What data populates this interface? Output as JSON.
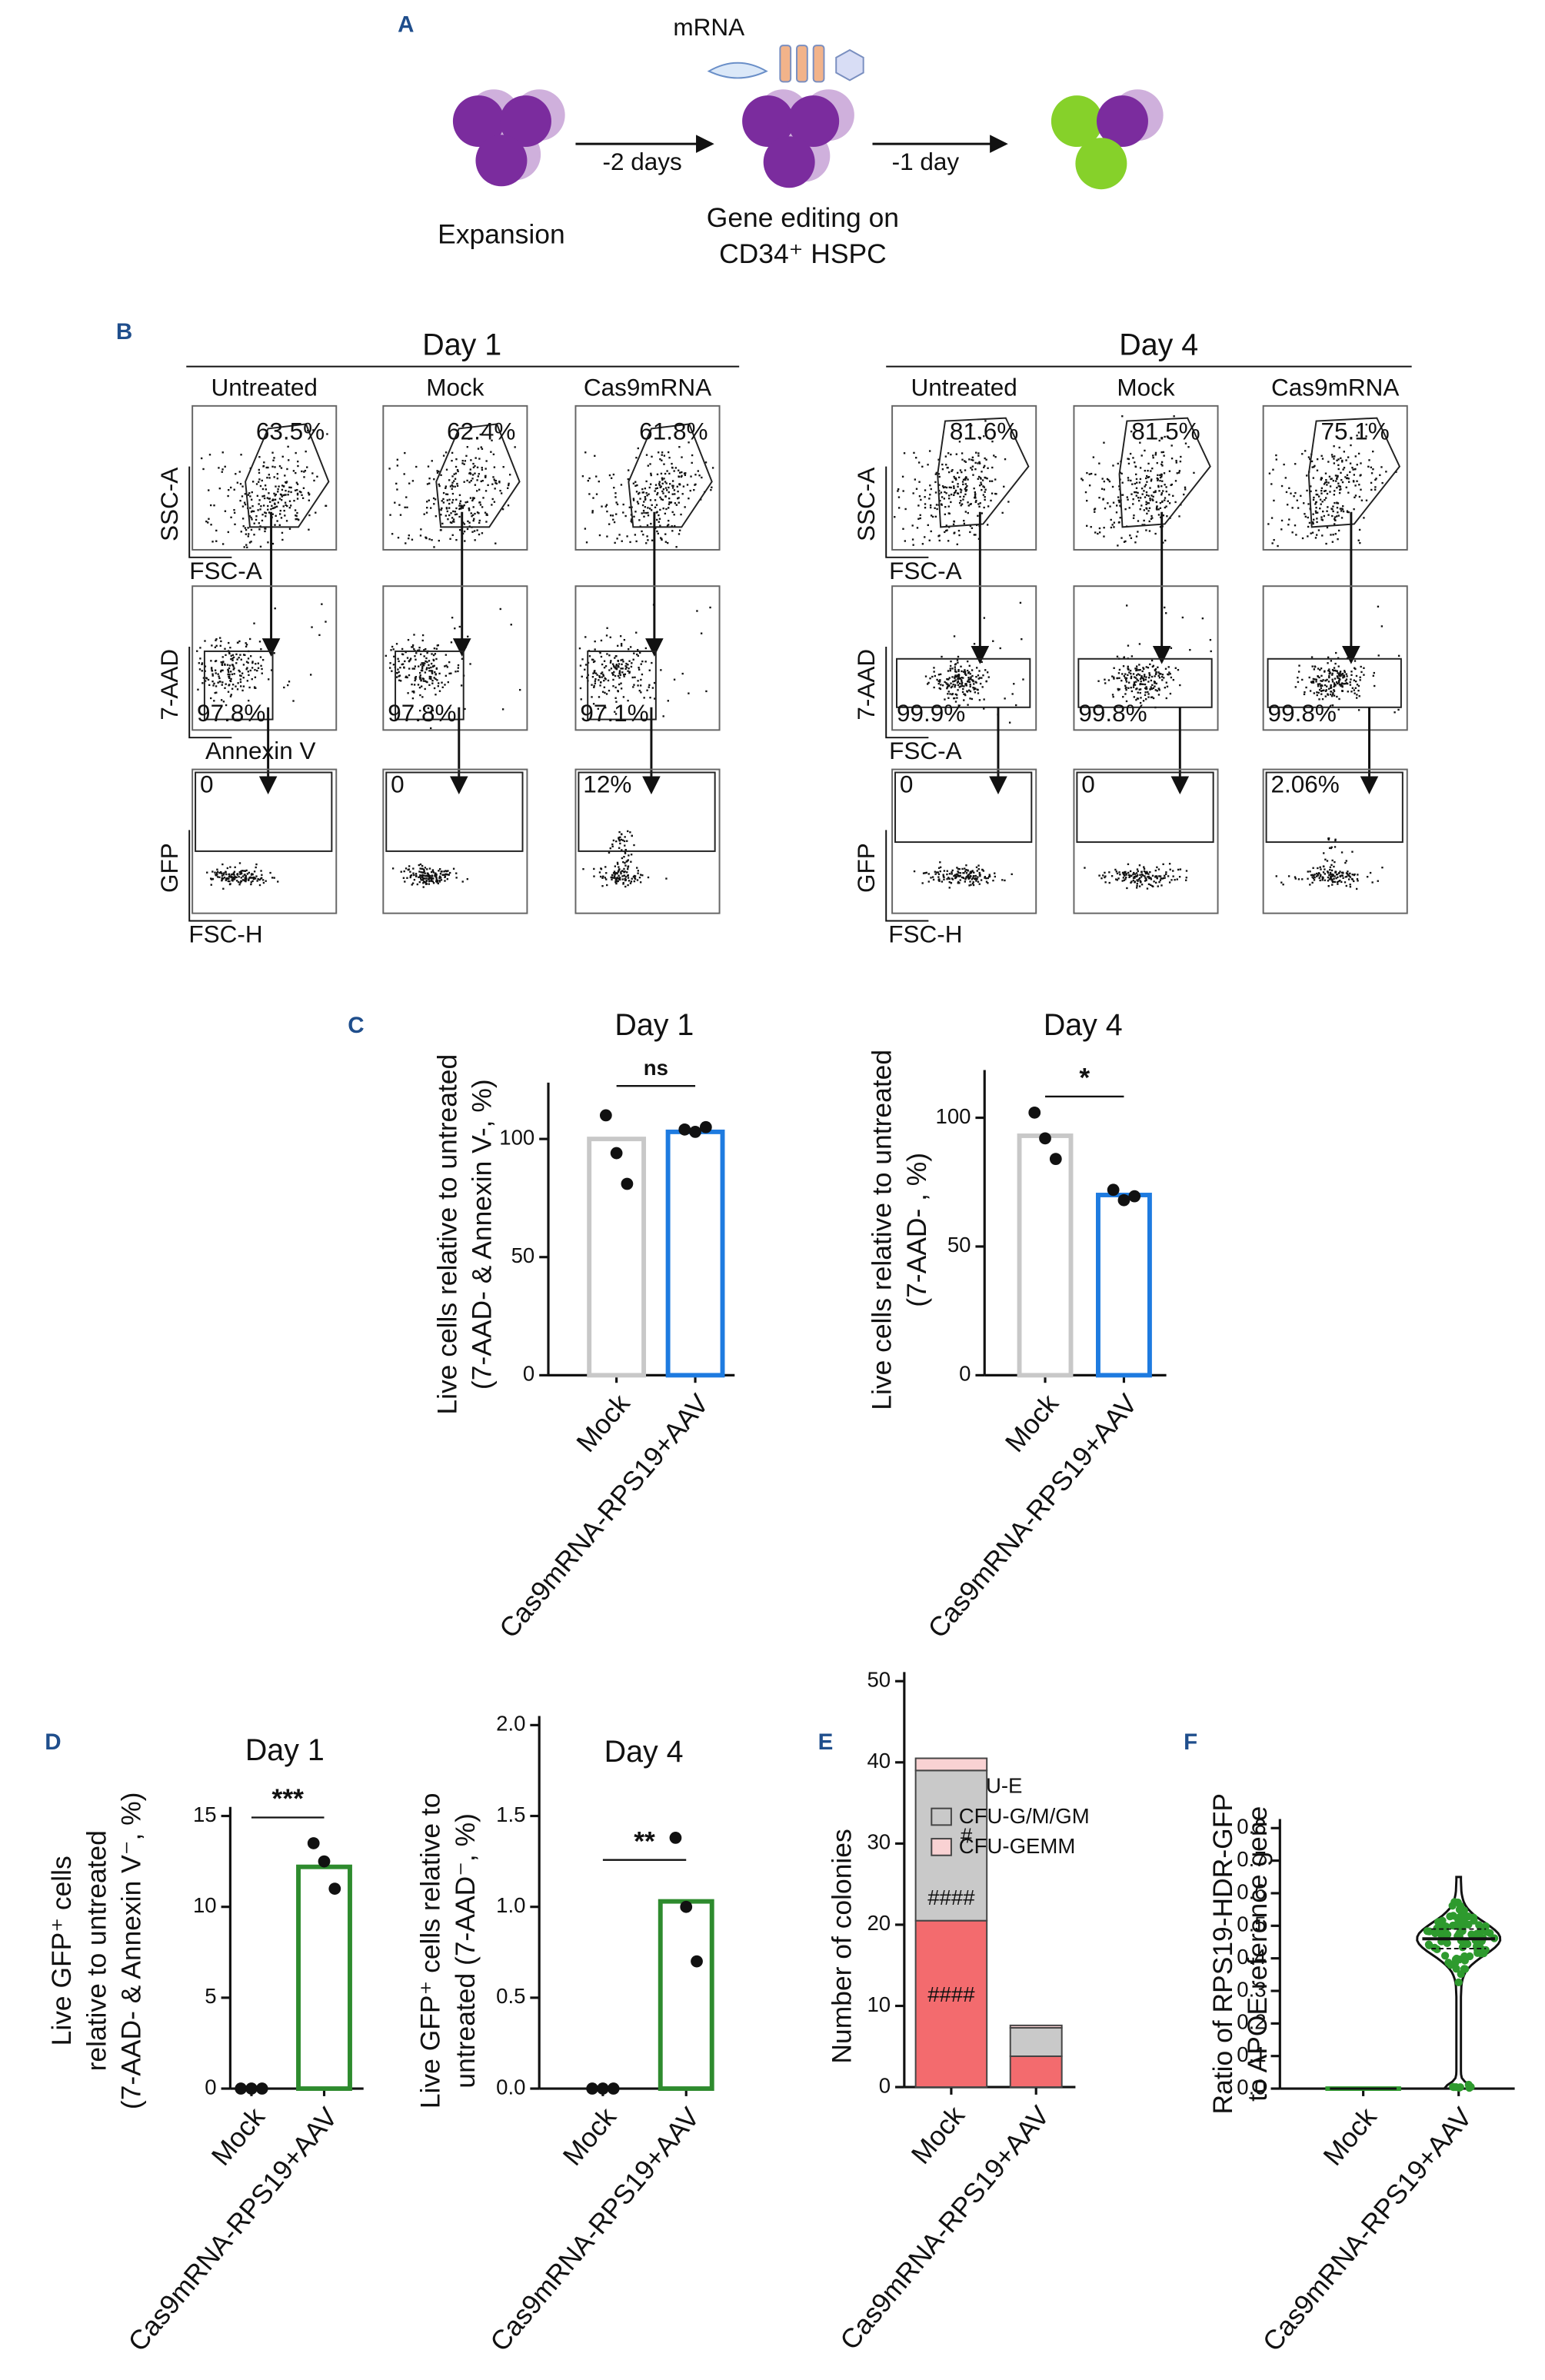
{
  "panel_labels": [
    "A",
    "B",
    "C",
    "D",
    "E",
    "F"
  ],
  "schematic": {
    "mrna": "mRNA",
    "steps": [
      "-2 days",
      "-1 day"
    ],
    "stages": [
      "Expansion",
      "Gene editing on",
      "CD34⁺ HSPC"
    ]
  },
  "flow": [
    {
      "title": "Day 1",
      "columns": [
        "Untreated",
        "Mock",
        "Cas9mRNA"
      ],
      "axes": [
        [
          "SSC-A",
          "FSC-A"
        ],
        [
          "7-AAD",
          "Annexin V"
        ],
        [
          "GFP",
          "FSC-H"
        ]
      ],
      "gates": [
        [
          "63.5%",
          "62.4%",
          "61.8%"
        ],
        [
          "97.8%",
          "97.8%",
          "97.1%"
        ],
        [
          "0",
          "0",
          "12%"
        ]
      ]
    },
    {
      "title": "Day 4",
      "columns": [
        "Untreated",
        "Mock",
        "Cas9mRNA"
      ],
      "axes": [
        [
          "SSC-A",
          "FSC-A"
        ],
        [
          "7-AAD",
          "FSC-A"
        ],
        [
          "GFP",
          "FSC-H"
        ]
      ],
      "gates": [
        [
          "81.6%",
          "81.5%",
          "75.1%"
        ],
        [
          "99.9%",
          "99.8%",
          "99.8%"
        ],
        [
          "0",
          "0",
          "2.06%"
        ]
      ]
    }
  ],
  "chart_data": [
    {
      "type": "bar",
      "title": "Day 1",
      "ylabel": [
        "Live cells relative to untreated",
        "(7-AAD- & Annexin V-, %)"
      ],
      "categories": [
        "Mock",
        "Cas9mRNA-RPS19+AAV"
      ],
      "values": [
        100,
        103
      ],
      "colors": [
        "#c8c8c8",
        "#1e7be0"
      ],
      "points": [
        [
          110,
          94,
          81
        ],
        [
          104,
          103,
          105
        ]
      ],
      "significance": "ns",
      "ylim": [
        0,
        120
      ],
      "yticks": [
        0,
        50,
        100
      ]
    },
    {
      "type": "bar",
      "title": "Day 4",
      "ylabel": [
        "Live cells relative to untreated",
        "(7-AAD- , %)"
      ],
      "categories": [
        "Mock",
        "Cas9mRNA-RPS19+AAV"
      ],
      "values": [
        93,
        70
      ],
      "colors": [
        "#c8c8c8",
        "#1e7be0"
      ],
      "points": [
        [
          102,
          92,
          84
        ],
        [
          72,
          68,
          69.5
        ]
      ],
      "significance": "*",
      "ylim": [
        0,
        115
      ],
      "yticks": [
        0,
        50,
        100
      ]
    },
    {
      "type": "bar",
      "title": "Day 1",
      "ylabel": [
        "Live GFP⁺ cells",
        "relative to untreated",
        "(7-AAD- & Annexin V⁻, %)"
      ],
      "categories": [
        "Mock",
        "Cas9mRNA-RPS19+AAV"
      ],
      "values": [
        0,
        12.2
      ],
      "colors": [
        "#2e8b2e",
        "#2e8b2e"
      ],
      "points": [
        [
          0,
          0,
          0
        ],
        [
          13.5,
          12.5,
          11
        ]
      ],
      "significance": "***",
      "ylim": [
        0,
        15
      ],
      "yticks": [
        0,
        5,
        10,
        15
      ]
    },
    {
      "type": "bar",
      "title": "Day 4",
      "ylabel": [
        "Live GFP⁺ cells relative to",
        "untreated (7-AAD⁻, %)"
      ],
      "categories": [
        "Mock",
        "Cas9mRNA-RPS19+AAV"
      ],
      "values": [
        0,
        1.03
      ],
      "colors": [
        "#2e8b2e",
        "#2e8b2e"
      ],
      "points": [
        [
          0,
          0,
          0
        ],
        [
          1.38,
          1.0,
          0.7
        ]
      ],
      "significance": "**",
      "ylim": [
        0,
        2
      ],
      "yticks": [
        {
          "value": 0,
          "label": "0.0"
        },
        0.5,
        {
          "value": 1,
          "label": "1.0"
        },
        1.5,
        {
          "value": 2,
          "label": "2.0"
        }
      ]
    },
    {
      "type": "stacked_bar",
      "ylabel": [
        "Number of colonies"
      ],
      "categories": [
        "Mock",
        "Cas9mRNA-RPS19+AAV"
      ],
      "series": [
        {
          "name": "BFU-E",
          "color": "#f36b6e",
          "values": [
            20.5,
            3.8
          ]
        },
        {
          "name": "CFU-G/M/GM",
          "color": "#c9c9c9",
          "values": [
            18.5,
            3.5
          ]
        },
        {
          "name": "CFU-GEMM",
          "color": "#f9d2d3",
          "values": [
            1.5,
            0.3
          ]
        }
      ],
      "annotations": [
        "####",
        "####",
        "#"
      ],
      "ylim": [
        0,
        50
      ],
      "yticks": [
        0,
        10,
        20,
        30,
        40,
        50
      ]
    },
    {
      "type": "violin",
      "ylabel": [
        "Ratio of RPS19-HDR-GFP",
        "to APOE reference gene"
      ],
      "categories": [
        "Mock",
        "Cas9mRNA-RPS19+AAV"
      ],
      "groups": [
        {
          "min": 0,
          "median": 0,
          "max": 0
        },
        {
          "min": 0,
          "q1": 0.43,
          "median": 0.46,
          "q3": 0.49,
          "max": 0.65
        }
      ],
      "color": "#2e9a2e",
      "ylim": [
        0,
        0.8
      ],
      "yticks": [
        {
          "value": 0,
          "label": "0.0"
        },
        0.1,
        0.2,
        0.3,
        0.4,
        0.5,
        0.6,
        0.7,
        0.8
      ]
    }
  ]
}
